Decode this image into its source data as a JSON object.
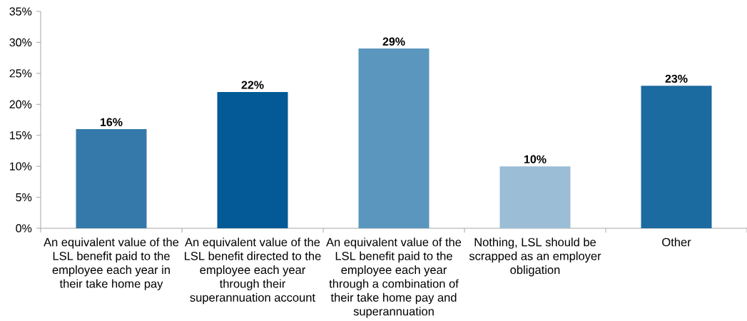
{
  "chart_data": {
    "type": "bar",
    "categories": [
      "An equivalent value of the LSL benefit paid to the employee each year in their take home pay",
      "An equivalent value of the LSL benefit directed to the employee each year through their superannuation account",
      "An equivalent value of the LSL benefit paid to the employee each year through a combination of their take home pay and superannuation",
      "Nothing, LSL should be scrapped as an employer obligation",
      "Other"
    ],
    "values": [
      16,
      22,
      29,
      10,
      23
    ],
    "colors": [
      "#3479a9",
      "#035a96",
      "#5a96bd",
      "#9bbdd6",
      "#1b6aa0"
    ],
    "value_labels": [
      "16%",
      "22%",
      "29%",
      "10%",
      "23%"
    ],
    "ylim": [
      0,
      35
    ],
    "yticks": [
      {
        "value": 0,
        "label": "0%"
      },
      {
        "value": 5,
        "label": "5%"
      },
      {
        "value": 10,
        "label": "10%"
      },
      {
        "value": 15,
        "label": "15%"
      },
      {
        "value": 20,
        "label": "20%"
      },
      {
        "value": 25,
        "label": "25%"
      },
      {
        "value": 30,
        "label": "30%"
      },
      {
        "value": 35,
        "label": "35%"
      }
    ]
  }
}
